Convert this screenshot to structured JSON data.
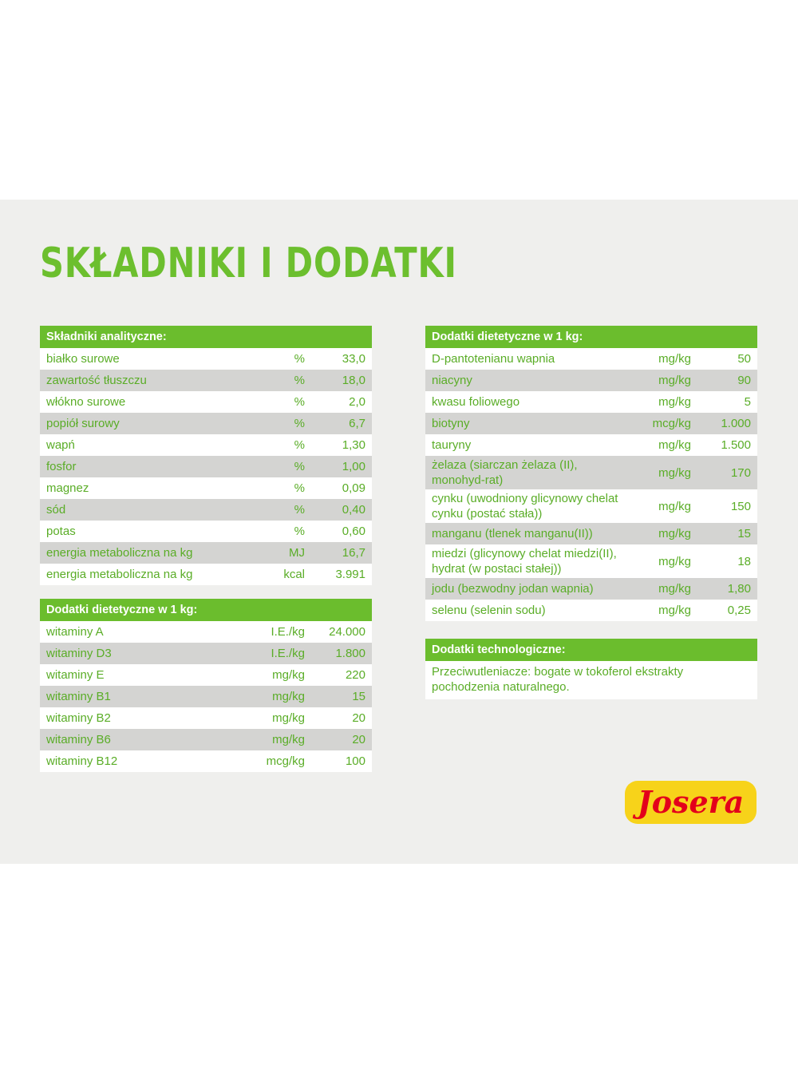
{
  "title": "SKŁADNIKI I DODATKI",
  "tables": [
    {
      "header": "Składniki analityczne:",
      "rows": [
        [
          "białko surowe",
          "%",
          "33,0"
        ],
        [
          "zawartość tłuszczu",
          "%",
          "18,0"
        ],
        [
          "włókno surowe",
          "%",
          "2,0"
        ],
        [
          "popiół surowy",
          "%",
          "6,7"
        ],
        [
          "wapń",
          "%",
          "1,30"
        ],
        [
          "fosfor",
          "%",
          "1,00"
        ],
        [
          "magnez",
          "%",
          "0,09"
        ],
        [
          "sód",
          "%",
          "0,40"
        ],
        [
          "potas",
          "%",
          "0,60"
        ],
        [
          "energia metaboliczna na kg",
          "MJ",
          "16,7"
        ],
        [
          "energia metaboliczna na kg",
          "kcal",
          "3.991"
        ]
      ]
    },
    {
      "header": "Dodatki dietetyczne w 1 kg:",
      "rows": [
        [
          "witaminy A",
          "I.E./kg",
          "24.000"
        ],
        [
          "witaminy D3",
          "I.E./kg",
          "1.800"
        ],
        [
          "witaminy E",
          "mg/kg",
          "220"
        ],
        [
          "witaminy B1",
          "mg/kg",
          "15"
        ],
        [
          "witaminy B2",
          "mg/kg",
          "20"
        ],
        [
          "witaminy B6",
          "mg/kg",
          "20"
        ],
        [
          "witaminy B12",
          "mcg/kg",
          "100"
        ]
      ]
    },
    {
      "header": "Dodatki dietetyczne w 1 kg:",
      "rows": [
        [
          "D-pantotenianu wapnia",
          "mg/kg",
          "50"
        ],
        [
          "niacyny",
          "mg/kg",
          "90"
        ],
        [
          "kwasu foliowego",
          "mg/kg",
          "5"
        ],
        [
          "biotyny",
          "mcg/kg",
          "1.000"
        ],
        [
          "tauryny",
          "mg/kg",
          "1.500"
        ],
        [
          "żelaza (siarczan żelaza (II), monohyd-rat)",
          "mg/kg",
          "170"
        ],
        [
          "cynku (uwodniony glicynowy chelat cynku (postać stała))",
          "mg/kg",
          "150"
        ],
        [
          "manganu (tlenek manganu(II))",
          "mg/kg",
          "15"
        ],
        [
          "miedzi (glicynowy chelat miedzi(II), hydrat (w postaci stałej))",
          "mg/kg",
          "18"
        ],
        [
          "jodu (bezwodny jodan wapnia)",
          "mg/kg",
          "1,80"
        ],
        [
          "selenu (selenin sodu)",
          "mg/kg",
          "0,25"
        ]
      ]
    },
    {
      "header": "Dodatki technologiczne:",
      "rows": [
        [
          "Przeciwutleniacze: bogate w tokoferol ekstrakty pochodzenia naturalnego."
        ]
      ]
    }
  ],
  "logo": "Josera"
}
